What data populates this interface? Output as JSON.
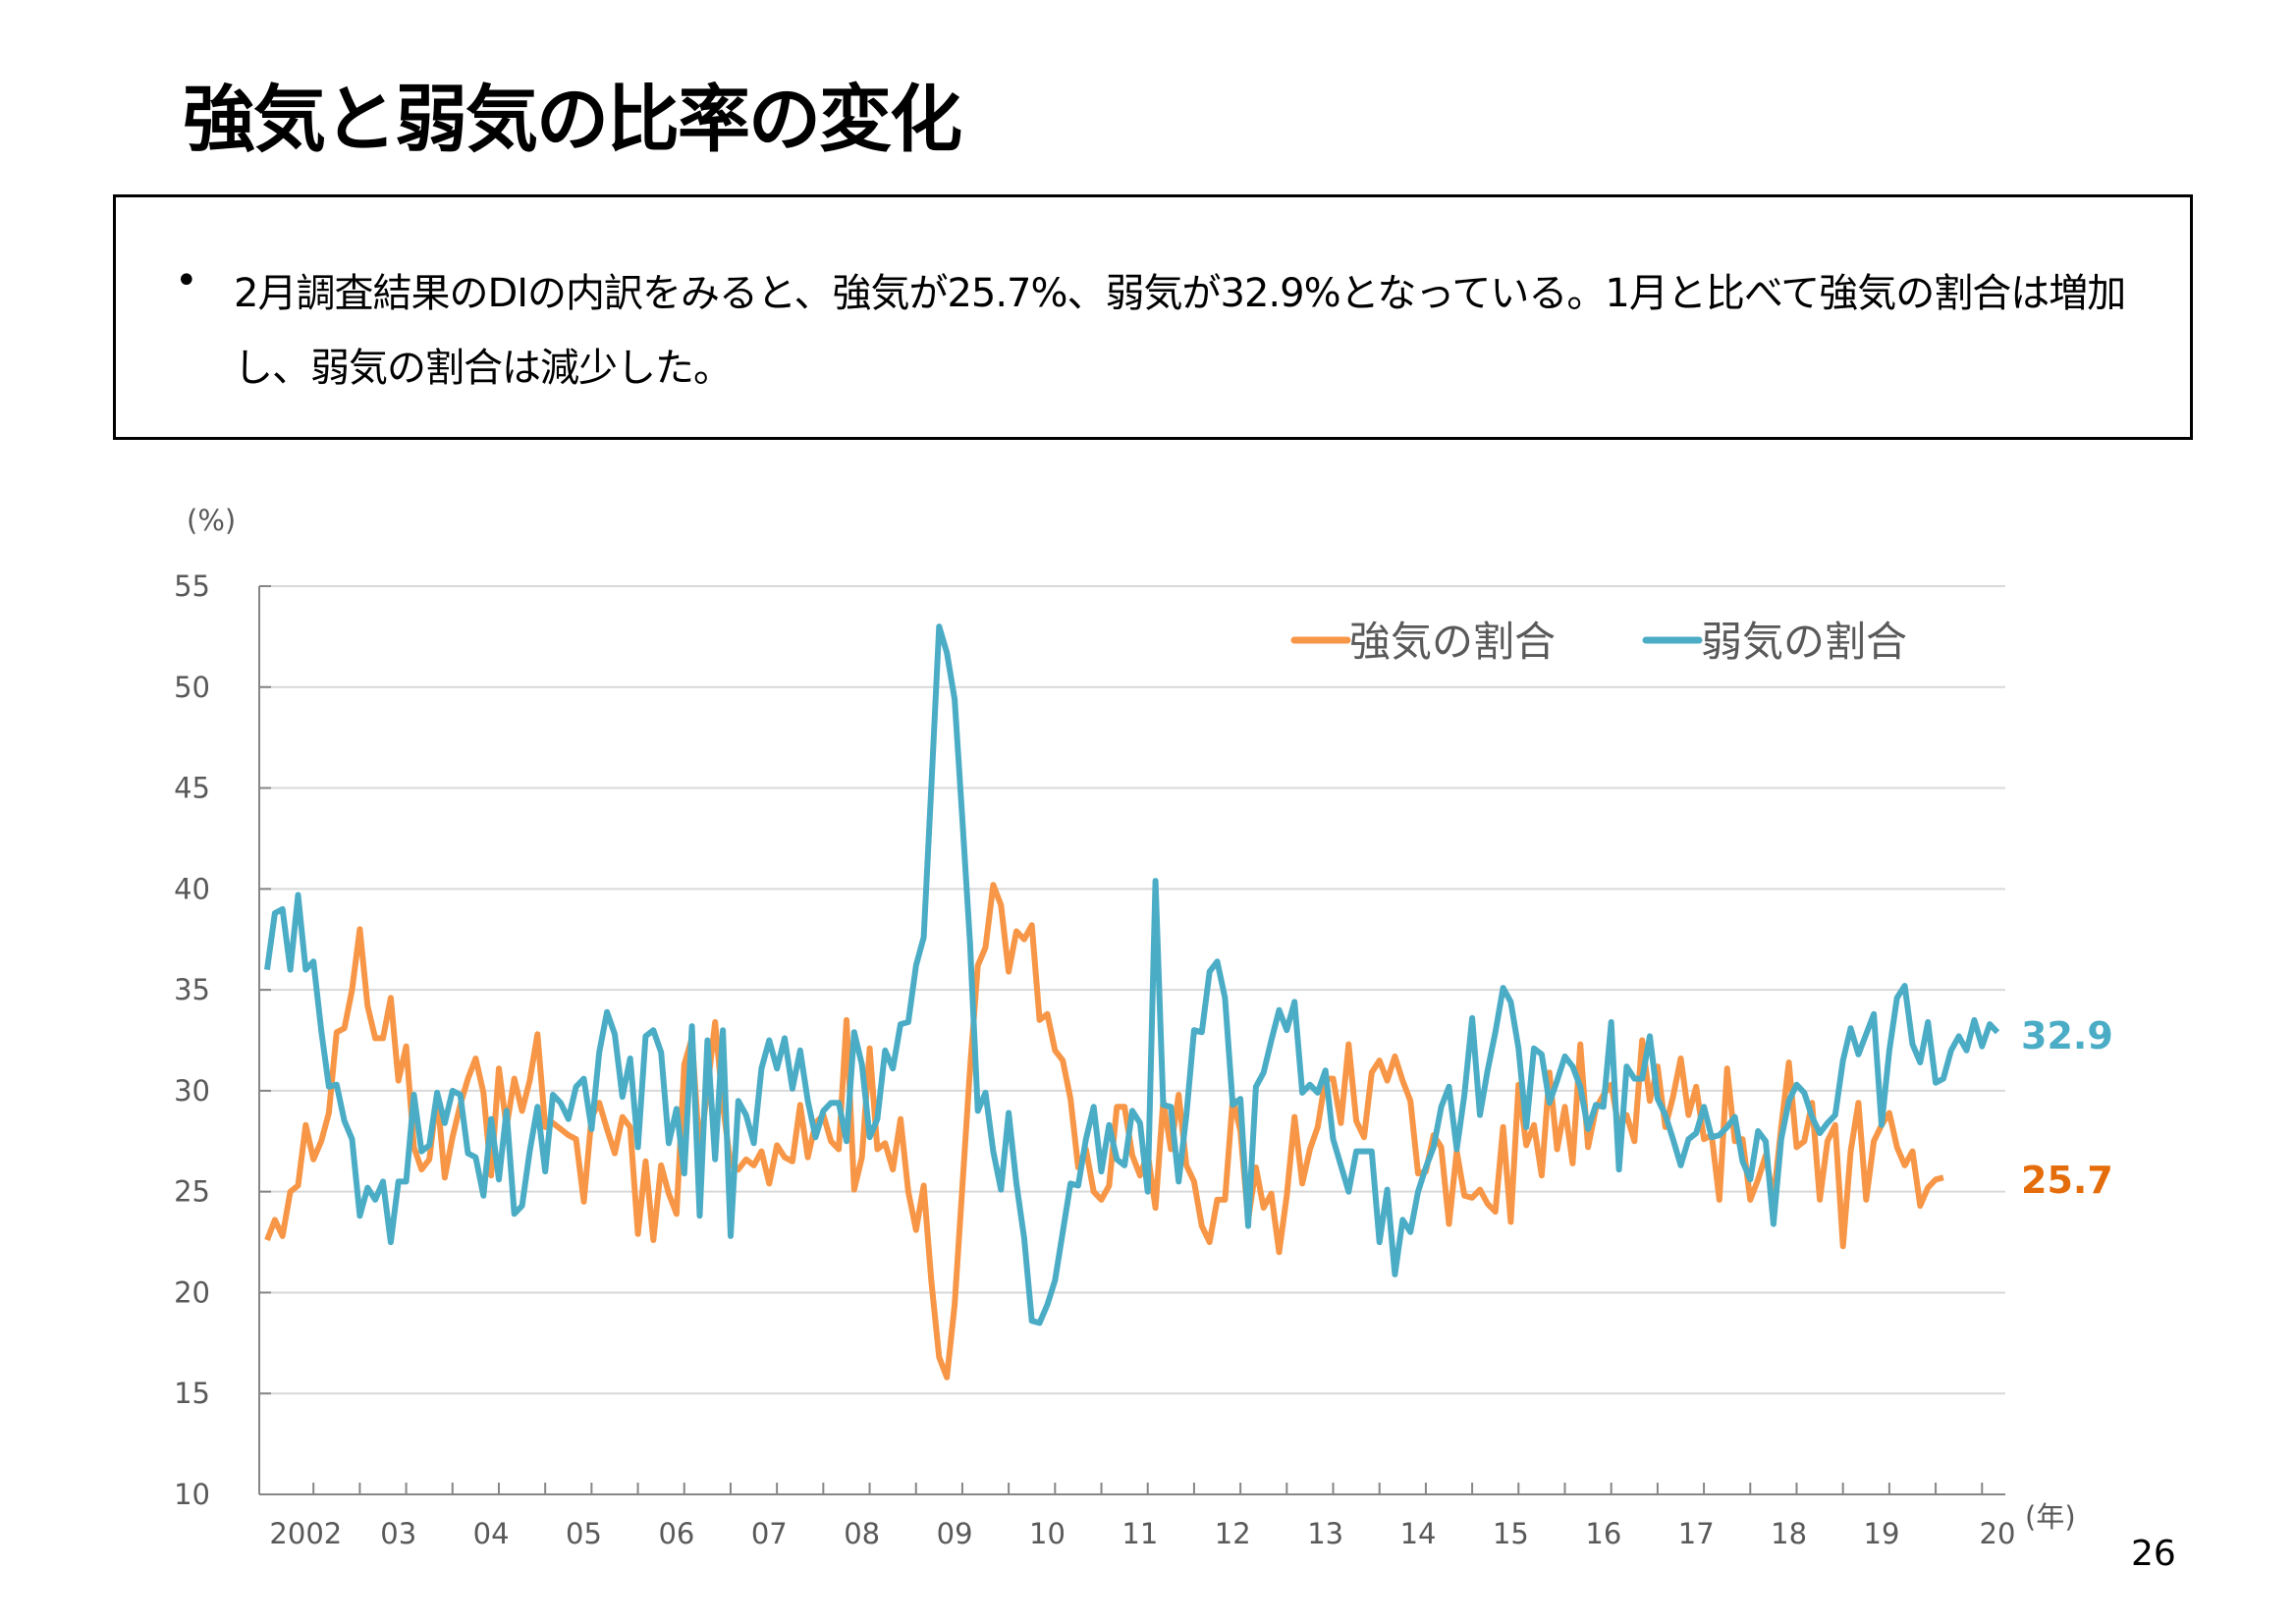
{
  "slide": {
    "title": "強気と弱気の比率の変化",
    "bullet_symbol": "•",
    "bullet_text": "2月調査結果のDIの内訳をみると、強気が25.7%、弱気が32.9%となっている。1月と比べて強気の割合は増加し、弱気の割合は減少した。",
    "page_number": "26"
  },
  "chart_data": {
    "type": "line",
    "title": "",
    "ylabel": "(%)",
    "xlabel": "(年)",
    "ylim": [
      10,
      55
    ],
    "yticks": [
      "10",
      "15",
      "20",
      "25",
      "30",
      "35",
      "40",
      "45",
      "50",
      "55"
    ],
    "x_start": "2002-01",
    "x_end": "2020-02",
    "xtick_labels": [
      "2002",
      "03",
      "04",
      "05",
      "06",
      "07",
      "08",
      "09",
      "10",
      "11",
      "12",
      "13",
      "14",
      "15",
      "16",
      "17",
      "18",
      "19",
      "20"
    ],
    "grid": true,
    "legend_position": "top-right",
    "colors": {
      "strong": "#F79646",
      "weak": "#4BACC6",
      "strong_label": "#E46C0A"
    },
    "series": [
      {
        "name": "強気の割合",
        "last_value_label": "25.7",
        "values": [
          22.6,
          23.6,
          22.8,
          25.0,
          25.3,
          28.3,
          26.6,
          27.5,
          28.9,
          32.9,
          33.1,
          35.0,
          38.0,
          34.2,
          32.6,
          32.6,
          34.6,
          30.5,
          32.2,
          27.2,
          26.1,
          26.6,
          29.8,
          25.7,
          27.7,
          29.3,
          30.6,
          31.6,
          29.9,
          25.8,
          31.1,
          28.2,
          30.6,
          29.0,
          30.5,
          32.8,
          28.2,
          28.4,
          28.1,
          27.8,
          27.6,
          24.5,
          28.7,
          29.4,
          28.1,
          26.9,
          28.7,
          28.2,
          22.9,
          26.5,
          22.6,
          26.3,
          24.9,
          23.9,
          31.3,
          32.6,
          26.9,
          30.1,
          33.4,
          29.3,
          26.3,
          26.1,
          26.6,
          26.3,
          27.0,
          25.4,
          27.3,
          26.7,
          26.5,
          29.3,
          26.7,
          28.4,
          28.8,
          27.5,
          27.1,
          33.5,
          25.1,
          26.7,
          32.1,
          27.1,
          27.4,
          26.1,
          28.6,
          25.0,
          23.1,
          25.3,
          20.5,
          16.8,
          15.8,
          19.4,
          25.2,
          31.1,
          36.2,
          37.1,
          40.2,
          39.2,
          35.9,
          37.9,
          37.5,
          38.2,
          33.5,
          33.8,
          32.0,
          31.5,
          29.6,
          26.2,
          27.1,
          25.0,
          24.6,
          25.3,
          29.2,
          29.2,
          26.8,
          25.8,
          26.9,
          24.2,
          29.5,
          27.1,
          29.8,
          26.3,
          25.5,
          23.3,
          22.5,
          24.6,
          24.6,
          29.6,
          28.0,
          23.6,
          26.2,
          24.2,
          24.9,
          22.0,
          24.8,
          28.7,
          25.4,
          27.1,
          28.2,
          30.6,
          30.6,
          28.4,
          32.3,
          28.5,
          27.7,
          30.9,
          31.5,
          30.5,
          31.7,
          30.5,
          29.5,
          25.9,
          26.0,
          27.8,
          27.2,
          23.4,
          27.0,
          24.8,
          24.7,
          25.1,
          24.4,
          24.0,
          28.2,
          23.5,
          30.3,
          27.3,
          28.3,
          25.8,
          30.9,
          27.1,
          29.2,
          26.4,
          32.3,
          27.2,
          29.1,
          29.8,
          30.3,
          28.1,
          28.8,
          27.5,
          32.5,
          29.5,
          31.2,
          28.2,
          29.7,
          31.6,
          28.8,
          30.2,
          27.6,
          27.8,
          24.6,
          31.1,
          27.5,
          27.6,
          24.6,
          25.6,
          26.8,
          24.6,
          28.2,
          31.4,
          27.2,
          27.5,
          29.4,
          24.6,
          27.5,
          28.3,
          22.3,
          27.0,
          29.4,
          24.6,
          27.5,
          28.3,
          28.9,
          27.2,
          26.3,
          27.0,
          24.3,
          25.2,
          25.6,
          25.7
        ]
      },
      {
        "name": "弱気の割合",
        "last_value_label": "32.9",
        "values": [
          36.0,
          38.8,
          39.0,
          36.0,
          39.7,
          36.0,
          36.4,
          33.0,
          30.2,
          30.3,
          28.5,
          27.6,
          23.8,
          25.2,
          24.6,
          25.5,
          22.5,
          25.5,
          25.5,
          29.8,
          27.0,
          27.3,
          29.9,
          28.4,
          30.0,
          29.8,
          26.9,
          26.7,
          24.8,
          28.6,
          25.6,
          29.0,
          23.9,
          24.3,
          27.0,
          29.2,
          26.0,
          29.8,
          29.4,
          28.6,
          30.2,
          30.6,
          28.1,
          31.9,
          33.9,
          32.8,
          29.7,
          31.6,
          27.2,
          32.7,
          33.0,
          31.9,
          27.4,
          29.1,
          25.9,
          33.2,
          23.8,
          32.5,
          26.6,
          33.0,
          22.8,
          29.5,
          28.8,
          27.4,
          31.1,
          32.5,
          31.1,
          32.6,
          30.1,
          32.0,
          29.5,
          27.7,
          29.0,
          29.4,
          29.4,
          27.5,
          32.9,
          31.3,
          27.7,
          28.6,
          32.0,
          31.1,
          33.3,
          33.4,
          36.2,
          37.6,
          45.2,
          53.0,
          51.7,
          49.4,
          43.5,
          37.3,
          29.0,
          29.9,
          27.0,
          25.1,
          28.9,
          25.4,
          22.7,
          18.6,
          18.5,
          19.4,
          20.6,
          23.0,
          25.4,
          25.3,
          27.6,
          29.2,
          26.0,
          28.3,
          26.6,
          26.3,
          29.0,
          28.4,
          25.0,
          40.4,
          29.3,
          29.2,
          25.5,
          28.8,
          33.0,
          32.9,
          35.9,
          36.4,
          34.6,
          29.3,
          29.6,
          23.3,
          30.2,
          30.9,
          32.5,
          34.0,
          33.0,
          34.4,
          29.9,
          30.3,
          29.9,
          31.0,
          27.6,
          26.3,
          25.0,
          27.0,
          27.0,
          27.0,
          22.5,
          25.1,
          20.9,
          23.6,
          23.0,
          25.0,
          26.2,
          27.2,
          29.2,
          30.2,
          27.1,
          29.8,
          33.6,
          28.8,
          31.0,
          32.9,
          35.1,
          34.4,
          32.1,
          28.2,
          32.1,
          31.8,
          29.4,
          30.5,
          31.7,
          31.2,
          30.2,
          28.1,
          29.3,
          29.2,
          33.4,
          26.1,
          31.2,
          30.6,
          30.6,
          32.7,
          29.6,
          28.8,
          27.6,
          26.3,
          27.6,
          27.9,
          29.2,
          27.7,
          27.8,
          28.2,
          28.7,
          26.5,
          25.6,
          28.0,
          27.5,
          23.4,
          27.6,
          29.5,
          30.3,
          29.9,
          28.7,
          27.9,
          28.4,
          28.8,
          31.5,
          33.1,
          31.8,
          32.8,
          33.8,
          28.3,
          32.0,
          34.6,
          35.2,
          32.3,
          31.4,
          33.4,
          30.4,
          30.6,
          32.0,
          32.7,
          32.0,
          33.5,
          32.2,
          33.3,
          32.9
        ]
      }
    ]
  }
}
